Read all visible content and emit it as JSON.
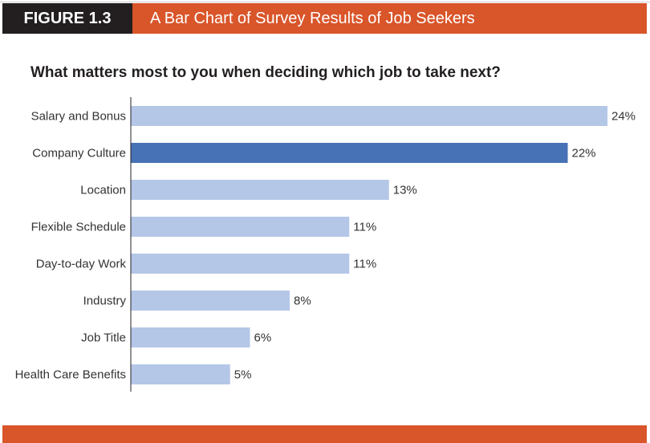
{
  "header": {
    "figure_label": "FIGURE 1.3",
    "title": "A Bar Chart of Survey Results of Job Seekers"
  },
  "chart_data": {
    "type": "bar",
    "orientation": "horizontal",
    "title": "What matters most to you when deciding which job to take next?",
    "categories": [
      "Salary and Bonus",
      "Company Culture",
      "Location",
      "Flexible Schedule",
      "Day-to-day Work",
      "Industry",
      "Job Title",
      "Health Care Benefits"
    ],
    "values": [
      24,
      22,
      13,
      11,
      11,
      8,
      6,
      5
    ],
    "value_labels": [
      "24%",
      "22%",
      "13%",
      "11%",
      "11%",
      "8%",
      "6%",
      "5%"
    ],
    "highlight_index": 1,
    "xlabel": "",
    "ylabel": "",
    "xlim": [
      0,
      24
    ],
    "colors": {
      "bar": "#b4c7e7",
      "highlight": "#4872b6",
      "accent": "#d9552a"
    }
  }
}
